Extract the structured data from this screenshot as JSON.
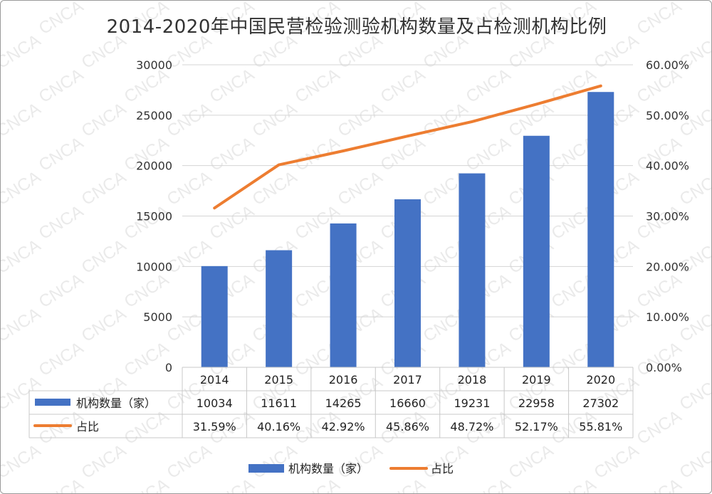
{
  "watermark_text": "CNCA",
  "chart_data": {
    "type": "bar",
    "title": "2014-2020年中国民营检验测验机构数量及占检测机构比例",
    "categories": [
      "2014",
      "2015",
      "2016",
      "2017",
      "2018",
      "2019",
      "2020"
    ],
    "series": [
      {
        "name": "机构数量（家）",
        "type": "bar",
        "axis": "left",
        "color": "#4472C4",
        "values": [
          10034,
          11611,
          14265,
          16660,
          19231,
          22958,
          27302
        ]
      },
      {
        "name": "占比",
        "type": "line",
        "axis": "right",
        "color": "#ED7D31",
        "values": [
          31.59,
          40.16,
          42.92,
          45.86,
          48.72,
          52.17,
          55.81
        ]
      }
    ],
    "data_table": {
      "bar_row": [
        "10034",
        "11611",
        "14265",
        "16660",
        "19231",
        "22958",
        "27302"
      ],
      "line_row": [
        "31.59%",
        "40.16%",
        "42.92%",
        "45.86%",
        "48.72%",
        "52.17%",
        "55.81%"
      ]
    },
    "y_left": {
      "min": 0,
      "max": 30000,
      "step": 5000,
      "ticks": [
        "0",
        "5000",
        "10000",
        "15000",
        "20000",
        "25000",
        "30000"
      ]
    },
    "y_right": {
      "min": 0,
      "max": 60,
      "step": 10,
      "ticks": [
        "0.00%",
        "10.00%",
        "20.00%",
        "30.00%",
        "40.00%",
        "50.00%",
        "60.00%"
      ]
    },
    "grid": true,
    "legend_position": "bottom"
  }
}
